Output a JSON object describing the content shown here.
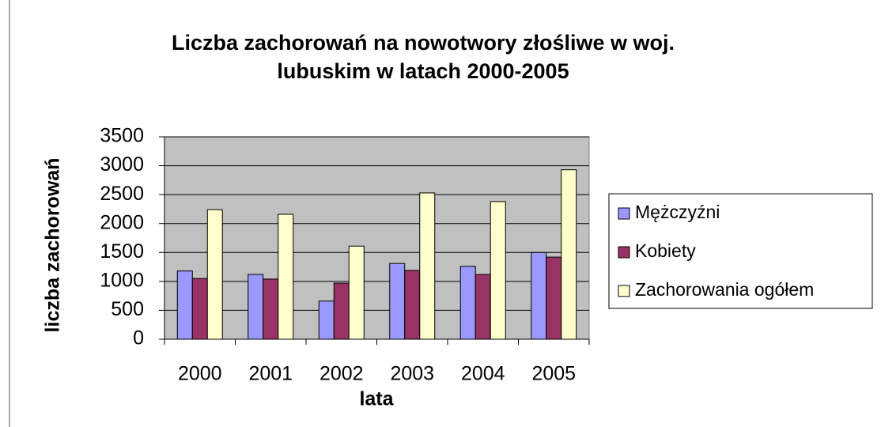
{
  "chart_data": {
    "type": "bar",
    "title": [
      "Liczba zachorowań na nowotwory złośliwe w woj.",
      "lubuskim w latach 2000-2005"
    ],
    "x_label": "lata",
    "y_label": "liczba zachorowań",
    "categories": [
      "2000",
      "2001",
      "2002",
      "2003",
      "2004",
      "2005"
    ],
    "series": [
      {
        "name": "Mężczyźni",
        "color": "#9999ff",
        "values": [
          1180,
          1120,
          660,
          1310,
          1260,
          1500
        ]
      },
      {
        "name": "Kobiety",
        "color": "#993366",
        "values": [
          1050,
          1040,
          970,
          1190,
          1120,
          1420
        ]
      },
      {
        "name": "Zachorowania ogółem",
        "color": "#ffffcc",
        "values": [
          2240,
          2160,
          1610,
          2530,
          2380,
          2930
        ]
      }
    ],
    "ylim": [
      0,
      3500
    ],
    "yticks": [
      0,
      500,
      1000,
      1500,
      2000,
      2500,
      3000,
      3500
    ],
    "grid": true,
    "legend": "right"
  }
}
